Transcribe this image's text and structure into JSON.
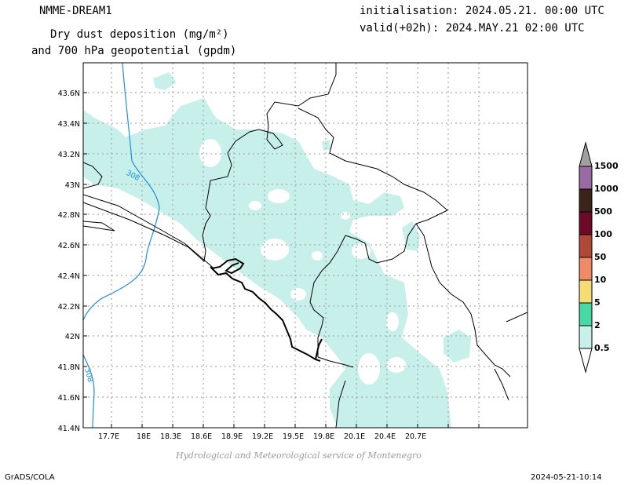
{
  "header": {
    "model": "NMME-DREAM1",
    "field_line1": "Dry dust deposition (mg/m²)",
    "field_line2": "and 700 hPa geopotential (gpdm)",
    "initialisation": "initialisation: 2024.05.21. 00:00 UTC",
    "valid": "valid(+02h): 2024.MAY.21 02:00 UTC"
  },
  "map": {
    "lon_labels": [
      "17.7E",
      "18E",
      "18.3E",
      "18.6E",
      "18.9E",
      "19.2E",
      "19.5E",
      "19.8E",
      "20.1E",
      "20.4E",
      "20.7E"
    ],
    "lat_labels": [
      "43.6N",
      "43.4N",
      "43.2N",
      "43N",
      "42.8N",
      "42.6N",
      "42.4N",
      "42.2N",
      "42N",
      "41.8N",
      "41.6N",
      "41.4N"
    ],
    "contour_labels": [
      "308",
      "308"
    ],
    "dust_color": "#c8f0ea",
    "contour_color": "#1f8fe0"
  },
  "colorbar": {
    "labels": [
      "1500",
      "1000",
      "500",
      "100",
      "50",
      "10",
      "5",
      "2",
      "0.5"
    ],
    "colors": [
      "#a0a0a0",
      "#9a6aa5",
      "#3d2418",
      "#6e0a28",
      "#b04838",
      "#ee8a66",
      "#f5dc74",
      "#48d8a4",
      "#c8f0ea",
      "#ffffff"
    ]
  },
  "footer": {
    "credit": "Hydrological and Meteorological service of Montenegro",
    "software": "GrADS/COLA",
    "timestamp": "2024-05-21-10:14"
  }
}
